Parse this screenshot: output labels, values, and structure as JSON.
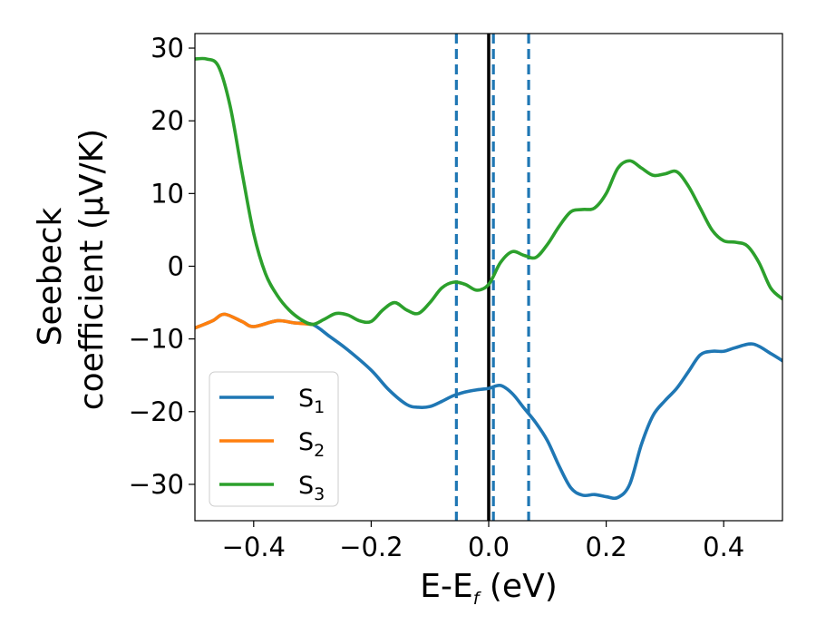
{
  "chart_data": {
    "type": "line",
    "title": "",
    "xlabel": {
      "main": "E-E",
      "sub": "f",
      "unit": " (eV)"
    },
    "ylabel": {
      "line1": "Seebeck",
      "line2": "coefficient  (μV/K)"
    },
    "xlim": [
      -0.5,
      0.5
    ],
    "ylim": [
      -35,
      32
    ],
    "xticks": [
      -0.4,
      -0.2,
      0.0,
      0.2,
      0.4
    ],
    "xtick_labels": [
      "−0.4",
      "−0.2",
      "0.0",
      "0.2",
      "0.4"
    ],
    "yticks": [
      30,
      20,
      10,
      0,
      -10,
      -20,
      -30
    ],
    "ytick_labels": [
      "30",
      "20",
      "10",
      "0",
      "−10",
      "−20",
      "−30"
    ],
    "grid": false,
    "legend_position": "lower-left",
    "vlines": [
      {
        "x": 0.0,
        "style": "solid",
        "color": "#000000"
      },
      {
        "x": -0.055,
        "style": "dashed",
        "color": "#1f77b4"
      },
      {
        "x": 0.008,
        "style": "dashed",
        "color": "#1f77b4"
      },
      {
        "x": 0.068,
        "style": "dashed",
        "color": "#1f77b4"
      }
    ],
    "series": [
      {
        "name": "S",
        "sub": "1",
        "color": "#1f77b4",
        "x": [
          -0.5,
          -0.47,
          -0.45,
          -0.42,
          -0.4,
          -0.36,
          -0.33,
          -0.3,
          -0.27,
          -0.24,
          -0.2,
          -0.17,
          -0.14,
          -0.12,
          -0.1,
          -0.08,
          -0.06,
          -0.04,
          -0.02,
          0.0,
          0.02,
          0.04,
          0.06,
          0.08,
          0.1,
          0.12,
          0.14,
          0.16,
          0.18,
          0.2,
          0.22,
          0.24,
          0.26,
          0.28,
          0.3,
          0.32,
          0.34,
          0.36,
          0.38,
          0.4,
          0.42,
          0.45,
          0.48,
          0.5
        ],
        "y": [
          -8.5,
          -7.5,
          -6.6,
          -7.6,
          -8.3,
          -7.5,
          -7.8,
          -8.0,
          -9.7,
          -11.5,
          -14.3,
          -17.0,
          -19.0,
          -19.4,
          -19.3,
          -18.6,
          -17.8,
          -17.3,
          -17.0,
          -16.8,
          -16.4,
          -17.5,
          -19.5,
          -21.5,
          -24.0,
          -27.5,
          -30.5,
          -31.5,
          -31.4,
          -31.7,
          -31.8,
          -30.0,
          -24.5,
          -20.5,
          -18.5,
          -16.8,
          -14.5,
          -12.2,
          -11.7,
          -11.7,
          -11.2,
          -10.7,
          -12.0,
          -13.0
        ]
      },
      {
        "name": "S",
        "sub": "2",
        "color": "#ff7f0e",
        "x": [
          -0.5,
          -0.47,
          -0.45,
          -0.42,
          -0.4,
          -0.36,
          -0.33,
          -0.3
        ],
        "y": [
          -8.5,
          -7.5,
          -6.6,
          -7.6,
          -8.3,
          -7.5,
          -7.8,
          -8.0
        ]
      },
      {
        "name": "S",
        "sub": "3",
        "color": "#2ca02c",
        "x": [
          -0.5,
          -0.48,
          -0.46,
          -0.44,
          -0.42,
          -0.4,
          -0.38,
          -0.36,
          -0.34,
          -0.32,
          -0.3,
          -0.28,
          -0.26,
          -0.24,
          -0.22,
          -0.2,
          -0.18,
          -0.16,
          -0.14,
          -0.12,
          -0.1,
          -0.08,
          -0.06,
          -0.04,
          -0.02,
          0.0,
          0.02,
          0.04,
          0.06,
          0.08,
          0.1,
          0.12,
          0.14,
          0.16,
          0.18,
          0.2,
          0.22,
          0.24,
          0.26,
          0.28,
          0.3,
          0.32,
          0.34,
          0.36,
          0.38,
          0.4,
          0.42,
          0.44,
          0.46,
          0.48,
          0.5
        ],
        "y": [
          28.5,
          28.5,
          27.5,
          22.0,
          13.0,
          4.5,
          -1.0,
          -4.0,
          -6.0,
          -7.3,
          -8.0,
          -7.3,
          -6.5,
          -6.7,
          -7.5,
          -7.6,
          -6.0,
          -5.0,
          -6.0,
          -6.5,
          -5.0,
          -3.0,
          -2.2,
          -2.5,
          -3.3,
          -2.5,
          0.5,
          2.0,
          1.5,
          1.2,
          3.0,
          5.5,
          7.5,
          7.8,
          8.0,
          10.0,
          13.5,
          14.5,
          13.5,
          12.5,
          12.7,
          13.0,
          11.0,
          8.0,
          5.0,
          3.5,
          3.3,
          2.8,
          0.5,
          -3.0,
          -4.5
        ]
      }
    ]
  }
}
